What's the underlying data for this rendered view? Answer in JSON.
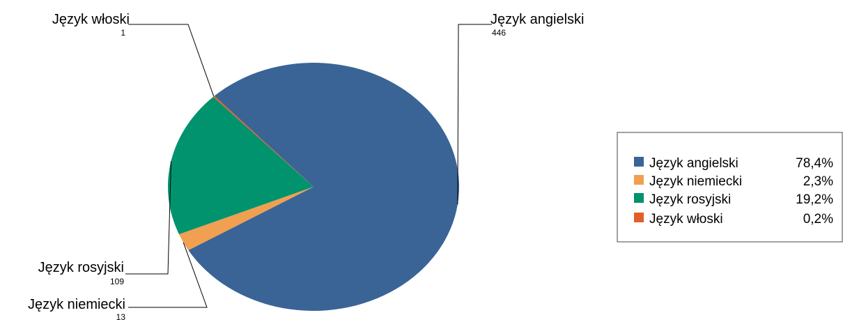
{
  "chart_data": {
    "type": "pie",
    "title": "",
    "categories": [
      "Język angielski",
      "Język niemiecki",
      "Język rosyjski",
      "Język włoski"
    ],
    "values": [
      446,
      13,
      109,
      1
    ],
    "value_labels": [
      "446",
      "13",
      "109",
      "1"
    ],
    "percent_labels": [
      "78,4%",
      "2,3%",
      "19,2%",
      "0,2%"
    ],
    "colors": [
      "#3A6496",
      "#F0A050",
      "#00936E",
      "#E06028"
    ],
    "legend_position": "right"
  }
}
